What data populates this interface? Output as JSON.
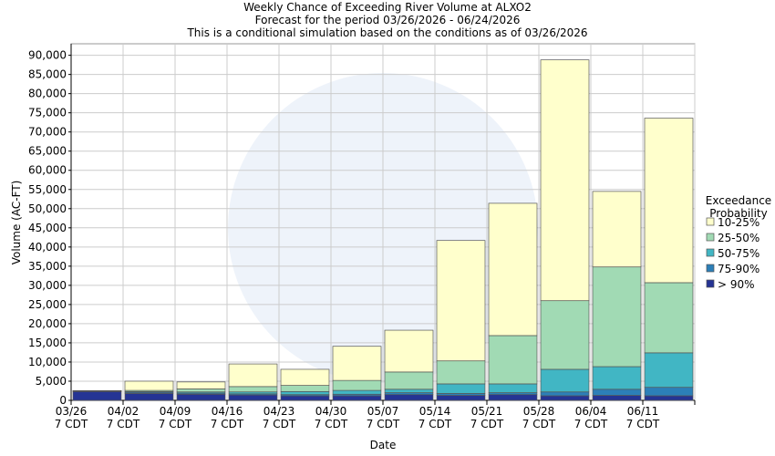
{
  "chart_data": {
    "type": "stacked_bar",
    "title": "Weekly Chance of Exceeding River Volume at ALXO2",
    "subtitle": "Forecast for the period 03/26/2026 - 06/24/2026",
    "note": "This is a conditional simulation based on the conditions as of 03/26/2026",
    "x_label": "Date",
    "y_label": "Volume (AC-FT)",
    "legend_title": "Exceedance Probability",
    "categories": [
      "03/26\n7 CDT",
      "04/02\n7 CDT",
      "04/09\n7 CDT",
      "04/16\n7 CDT",
      "04/23\n7 CDT",
      "04/30\n7 CDT",
      "05/07\n7 CDT",
      "05/14\n7 CDT",
      "05/21\n7 CDT",
      "05/28\n7 CDT",
      "06/04\n7 CDT",
      "06/11\n7 CDT"
    ],
    "series": [
      {
        "name": "> 90%",
        "color": "#253494",
        "values": [
          2300,
          1800,
          1600,
          1400,
          1200,
          1200,
          1500,
          1300,
          1500,
          1200,
          1300,
          1200
        ]
      },
      {
        "name": "75-90%",
        "color": "#2c7fb8",
        "values": [
          100,
          300,
          300,
          300,
          300,
          400,
          500,
          500,
          500,
          1000,
          1600,
          2200
        ]
      },
      {
        "name": "50-75%",
        "color": "#41b6c4",
        "values": [
          50,
          200,
          300,
          500,
          800,
          1000,
          900,
          2500,
          2300,
          5900,
          5900,
          9000
        ]
      },
      {
        "name": "25-50%",
        "color": "#a1dab4",
        "values": [
          50,
          300,
          800,
          1400,
          1600,
          2600,
          4500,
          6000,
          12600,
          17900,
          26000,
          18300
        ]
      },
      {
        "name": "10-25%",
        "color": "#ffffcc",
        "values": [
          50,
          2400,
          1800,
          5900,
          4200,
          8900,
          10900,
          31400,
          34500,
          62800,
          19700,
          42900
        ]
      }
    ],
    "ylim": [
      0,
      93000
    ],
    "yticks": [
      0,
      {
        "value": 5000,
        "label": "5,000"
      },
      {
        "value": 10000,
        "label": "10,000"
      },
      {
        "value": 15000,
        "label": "15,000"
      },
      {
        "value": 20000,
        "label": "20,000"
      },
      {
        "value": 25000,
        "label": "25,000"
      },
      {
        "value": 30000,
        "label": "30,000"
      },
      {
        "value": 35000,
        "label": "35,000"
      },
      {
        "value": 40000,
        "label": "40,000"
      },
      {
        "value": 45000,
        "label": "45,000"
      },
      {
        "value": 50000,
        "label": "50,000"
      },
      {
        "value": 55000,
        "label": "55,000"
      },
      {
        "value": 60000,
        "label": "60,000"
      },
      {
        "value": 65000,
        "label": "65,000"
      },
      {
        "value": 70000,
        "label": "70,000"
      },
      {
        "value": 75000,
        "label": "75,000"
      },
      {
        "value": 80000,
        "label": "80,000"
      },
      {
        "value": 85000,
        "label": "85,000"
      },
      {
        "value": 90000,
        "label": "90,000"
      }
    ],
    "grid": true
  }
}
